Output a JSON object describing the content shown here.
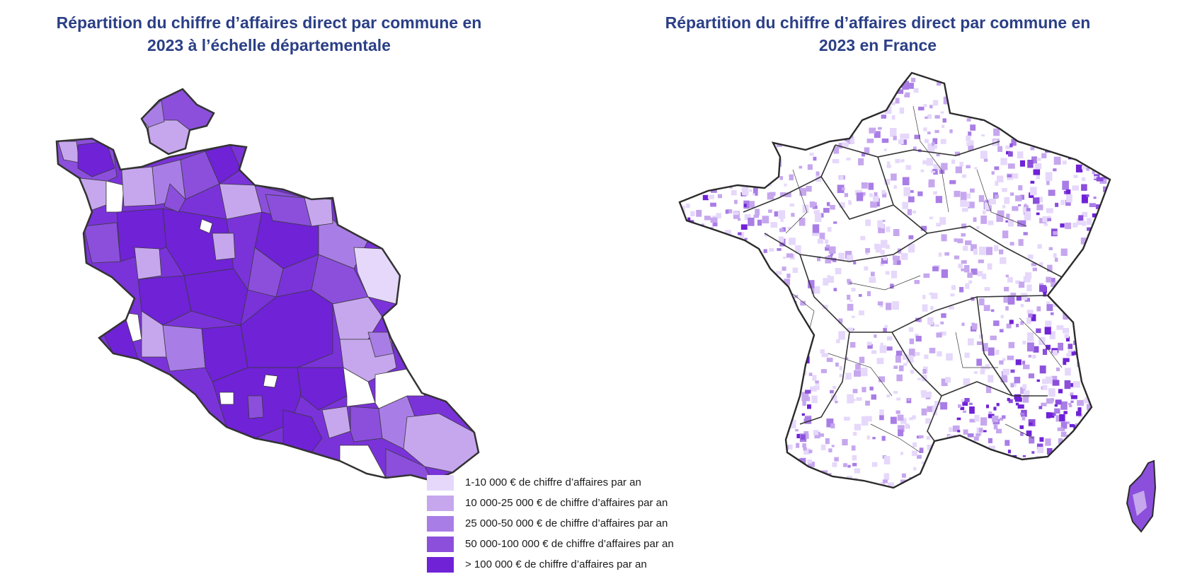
{
  "titles": {
    "left": "Répartition du chiffre d’affaires direct par commune en\n2023 à l’échelle départementale",
    "right": "Répartition du chiffre d’affaires direct par commune en\n2023 en France"
  },
  "legend": [
    {
      "label": "1-10 000 € de chiffre d’affaires par an",
      "color": "#e6d8fb"
    },
    {
      "label": "10 000-25 000 € de chiffre d’affaires par an",
      "color": "#c6a7ee"
    },
    {
      "label": "25 000-50 000 € de chiffre d’affaires par an",
      "color": "#a97de6"
    },
    {
      "label": "50 000-100 000 € de chiffre d’affaires par an",
      "color": "#8b4fdc"
    },
    {
      "label": "> 100 000 € de chiffre d’affaires par an",
      "color": "#6f22d6"
    }
  ],
  "colors": {
    "border": "#333333",
    "commune_border": "#3a3a3a"
  }
}
